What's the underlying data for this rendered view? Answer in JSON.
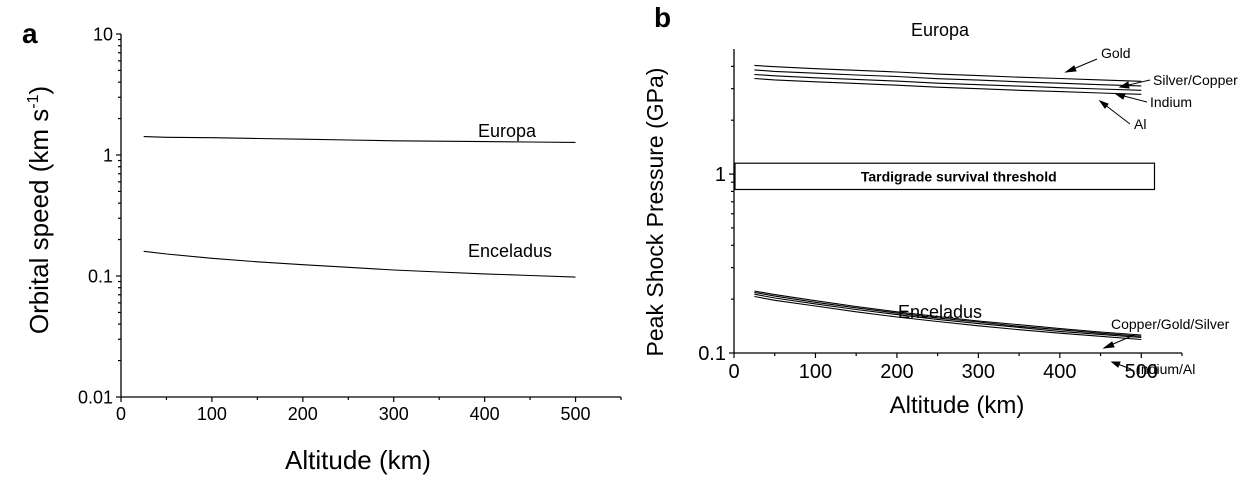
{
  "chart_data": [
    {
      "panel_label": "a",
      "type": "line",
      "xlabel": "Altitude (km)",
      "ylabel_main": "Orbital speed (km s",
      "ylabel_sup1": "-1",
      "ylabel_tail": ")",
      "xlim": [
        0,
        550
      ],
      "ylim": [
        0.01,
        10
      ],
      "yscale": "log",
      "x_ticks": [
        0,
        100,
        200,
        300,
        400,
        500
      ],
      "x_tick_labels": [
        "0",
        "100",
        "200",
        "300",
        "400",
        "500"
      ],
      "y_ticks": [
        0.01,
        0.1,
        1,
        10
      ],
      "y_tick_labels": [
        "0.01",
        "0.1",
        "1",
        "10"
      ],
      "series": [
        {
          "label": "Europa",
          "x": [
            25,
            50,
            100,
            150,
            200,
            250,
            300,
            350,
            400,
            450,
            500
          ],
          "y": [
            1.42,
            1.4,
            1.39,
            1.37,
            1.35,
            1.33,
            1.31,
            1.3,
            1.29,
            1.28,
            1.27
          ]
        },
        {
          "label": "Enceladus",
          "x": [
            25,
            50,
            100,
            150,
            200,
            250,
            300,
            350,
            400,
            450,
            500
          ],
          "y": [
            0.16,
            0.152,
            0.14,
            0.131,
            0.124,
            0.118,
            0.112,
            0.108,
            0.104,
            0.101,
            0.098
          ]
        }
      ]
    },
    {
      "panel_label": "b",
      "type": "line",
      "xlabel": "Altitude (km)",
      "ylabel": "Peak Shock Pressure (GPa)",
      "xlim": [
        0,
        550
      ],
      "ylim": [
        0.1,
        5
      ],
      "yscale": "log",
      "x_ticks": [
        0,
        100,
        200,
        300,
        400,
        500
      ],
      "x_tick_labels": [
        "0",
        "100",
        "200",
        "300",
        "400",
        "500"
      ],
      "y_ticks": [
        0.1,
        1
      ],
      "y_tick_labels": [
        "0.1",
        "1"
      ],
      "threshold": {
        "label": "Tardigrade survival threshold",
        "y_low": 0.82,
        "y_high": 1.15,
        "x_start": 0,
        "x_end": 515
      },
      "group_labels": [
        "Europa",
        "Enceladus"
      ],
      "series": [
        {
          "label": "Gold",
          "x": [
            25,
            50,
            100,
            150,
            200,
            250,
            300,
            350,
            400,
            450,
            500
          ],
          "y": [
            4.05,
            3.98,
            3.88,
            3.8,
            3.72,
            3.62,
            3.55,
            3.48,
            3.42,
            3.36,
            3.3
          ]
        },
        {
          "label": "Silver/Copper",
          "x": [
            25,
            50,
            100,
            150,
            200,
            250,
            300,
            350,
            400,
            450,
            500
          ],
          "y": [
            3.82,
            3.75,
            3.66,
            3.58,
            3.51,
            3.41,
            3.35,
            3.28,
            3.22,
            3.16,
            3.11
          ]
        },
        {
          "label": "Indium",
          "x": [
            25,
            50,
            100,
            150,
            200,
            250,
            300,
            350,
            400,
            450,
            500
          ],
          "y": [
            3.6,
            3.54,
            3.45,
            3.38,
            3.31,
            3.22,
            3.16,
            3.1,
            3.04,
            2.99,
            2.94
          ]
        },
        {
          "label": "Al",
          "x": [
            25,
            50,
            100,
            150,
            200,
            250,
            300,
            350,
            400,
            450,
            500
          ],
          "y": [
            3.42,
            3.36,
            3.28,
            3.21,
            3.14,
            3.06,
            3.0,
            2.94,
            2.89,
            2.84,
            2.79
          ]
        },
        {
          "label": "Copper",
          "x": [
            25,
            50,
            100,
            150,
            200,
            250,
            300,
            350,
            400,
            450,
            500
          ],
          "y": [
            0.222,
            0.212,
            0.196,
            0.182,
            0.17,
            0.16,
            0.151,
            0.144,
            0.137,
            0.131,
            0.126
          ]
        },
        {
          "label": "Gold",
          "x": [
            25,
            50,
            100,
            150,
            200,
            250,
            300,
            350,
            400,
            450,
            500
          ],
          "y": [
            0.218,
            0.208,
            0.192,
            0.179,
            0.167,
            0.157,
            0.149,
            0.141,
            0.135,
            0.129,
            0.124
          ]
        },
        {
          "label": "Silver",
          "x": [
            25,
            50,
            100,
            150,
            200,
            250,
            300,
            350,
            400,
            450,
            500
          ],
          "y": [
            0.213,
            0.203,
            0.188,
            0.175,
            0.164,
            0.154,
            0.146,
            0.139,
            0.132,
            0.127,
            0.122
          ]
        },
        {
          "label": "Indium/Al",
          "x": [
            25,
            50,
            100,
            150,
            200,
            250,
            300,
            350,
            400,
            450,
            500
          ],
          "y": [
            0.207,
            0.197,
            0.183,
            0.17,
            0.159,
            0.15,
            0.142,
            0.135,
            0.129,
            0.124,
            0.119
          ]
        }
      ],
      "annotations": [
        "Gold",
        "Silver/Copper",
        "Indium",
        "Al",
        "Copper/Gold/Silver",
        "Indium/Al"
      ]
    }
  ]
}
